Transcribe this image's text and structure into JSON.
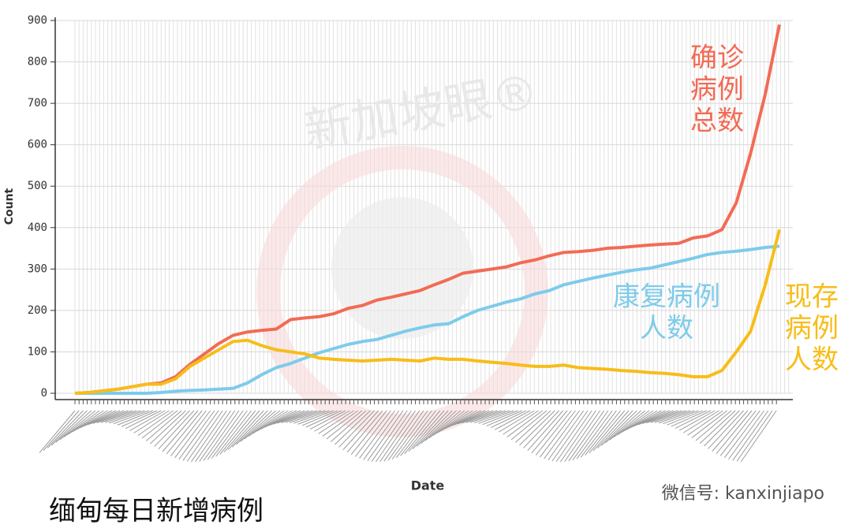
{
  "chart_data": {
    "type": "line",
    "title": "缅甸每日新增病例",
    "ylabel": "Count",
    "xlabel": "Date",
    "watermark": "新加坡眼®",
    "source": "微信号: kanxinjiapo",
    "ylim": [
      0,
      900
    ],
    "yticks": [
      0,
      100,
      200,
      300,
      400,
      500,
      600,
      700,
      800,
      900
    ],
    "grid": true,
    "series": [
      {
        "name": [
          "确诊",
          "病例",
          "总数"
        ],
        "color": "#f26b55",
        "values": [
          0,
          2,
          6,
          10,
          16,
          22,
          25,
          40,
          70,
          95,
          120,
          140,
          148,
          152,
          155,
          178,
          182,
          185,
          192,
          205,
          212,
          225,
          232,
          240,
          248,
          262,
          275,
          290,
          295,
          300,
          305,
          315,
          322,
          332,
          340,
          342,
          345,
          350,
          352,
          355,
          358,
          360,
          362,
          375,
          380,
          395,
          460,
          580,
          720,
          890
        ]
      },
      {
        "name": [
          "康复病例",
          "人数"
        ],
        "color": "#7ecbea",
        "values": [
          0,
          0,
          0,
          0,
          0,
          0,
          2,
          5,
          7,
          8,
          10,
          12,
          25,
          45,
          62,
          72,
          85,
          98,
          108,
          118,
          125,
          130,
          140,
          150,
          158,
          165,
          168,
          185,
          200,
          210,
          220,
          228,
          240,
          248,
          262,
          270,
          278,
          285,
          292,
          298,
          302,
          310,
          318,
          326,
          335,
          340,
          343,
          347,
          352,
          355
        ]
      },
      {
        "name": [
          "现存",
          "病例",
          "人数"
        ],
        "color": "#f7bd19",
        "values": [
          0,
          2,
          6,
          10,
          16,
          22,
          22,
          35,
          65,
          85,
          105,
          125,
          128,
          115,
          105,
          100,
          95,
          85,
          82,
          80,
          78,
          80,
          82,
          80,
          78,
          85,
          82,
          82,
          78,
          75,
          72,
          68,
          65,
          65,
          68,
          62,
          60,
          58,
          55,
          53,
          50,
          48,
          45,
          40,
          40,
          55,
          100,
          150,
          260,
          395
        ]
      }
    ]
  }
}
